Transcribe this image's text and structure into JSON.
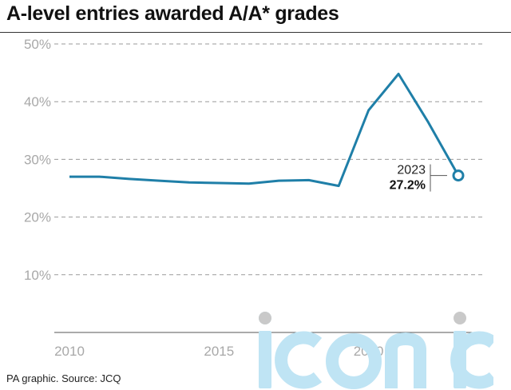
{
  "title": "A-level entries awarded A/A* grades",
  "footer": "PA graphic. Source: JCQ",
  "watermark": "iconic",
  "colors": {
    "line": "#1f7fa8",
    "grid": "#9a9a9a",
    "axis_text": "#a8a8a8",
    "watermark": "#bfe4f4"
  },
  "chart_data": {
    "type": "line",
    "title": "A-level entries awarded A/A* grades",
    "xlabel": "",
    "ylabel": "",
    "xlim": [
      2010,
      2023
    ],
    "ylim": [
      0,
      50
    ],
    "yticks": [
      10,
      20,
      30,
      40,
      50
    ],
    "ytick_labels": [
      "10%",
      "20%",
      "30%",
      "40%",
      "50%"
    ],
    "xticks": [
      2010,
      2015,
      2020
    ],
    "xtick_labels": [
      "2010",
      "2015",
      "2020"
    ],
    "grid": true,
    "series": [
      {
        "x": [
          2010,
          2011,
          2012,
          2013,
          2014,
          2015,
          2016,
          2017,
          2018,
          2019,
          2020,
          2021,
          2022,
          2023
        ],
        "y": [
          27.0,
          27.0,
          26.6,
          26.3,
          26.0,
          25.9,
          25.8,
          26.3,
          26.4,
          25.4,
          38.5,
          44.8,
          36.4,
          27.2
        ]
      }
    ],
    "annotation": {
      "x": 2023,
      "y": 27.2,
      "label_year": "2023",
      "label_value": "27.2%"
    }
  }
}
